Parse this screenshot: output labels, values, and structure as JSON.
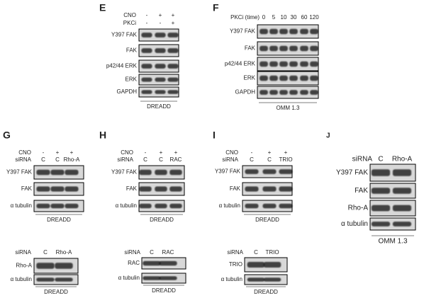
{
  "panels": [
    {
      "letter": "E",
      "header": [
        {
          "label": "CNO",
          "lanes": [
            "-",
            "+",
            "+"
          ]
        },
        {
          "label": "PKCi",
          "lanes": [
            "-",
            "-",
            "+"
          ]
        }
      ],
      "blots": [
        "Y397 FAK",
        "FAK",
        "p42/44 ERK",
        "ERK",
        "GAPDH"
      ],
      "caption": "DREADD"
    },
    {
      "letter": "F",
      "header": [
        {
          "label": "PKCi (time)",
          "lanes": [
            "0",
            "5",
            "10",
            "30",
            "60",
            "120"
          ]
        }
      ],
      "blots": [
        "Y397 FAK",
        "FAK",
        "p42/44 ERK",
        "ERK",
        "GAPDH"
      ],
      "caption": "OMM 1.3"
    },
    {
      "letter": "G",
      "header": [
        {
          "label": "CNO",
          "lanes": [
            "-",
            "+",
            "+"
          ]
        },
        {
          "label": "siRNA",
          "lanes": [
            "C",
            "C",
            "Rho-A"
          ]
        }
      ],
      "blots": [
        "Y397 FAK",
        "FAK",
        "α tubulin"
      ],
      "caption": "DREADD"
    },
    {
      "header": [
        {
          "label": "siRNA",
          "lanes": [
            "C",
            "Rho-A"
          ]
        }
      ],
      "blots": [
        "Rho-A",
        "α tubulin"
      ],
      "caption": "DREADD"
    },
    {
      "letter": "H",
      "header": [
        {
          "label": "CNO",
          "lanes": [
            "-",
            "+",
            "+"
          ]
        },
        {
          "label": "siRNA",
          "lanes": [
            "C",
            "C",
            "RAC"
          ]
        }
      ],
      "blots": [
        "Y397 FAK",
        "FAK",
        "α tubulin"
      ],
      "caption": "DREADD"
    },
    {
      "header": [
        {
          "label": "siRNA",
          "lanes": [
            "C",
            "RAC"
          ]
        }
      ],
      "blots": [
        "RAC",
        "α tubulin"
      ],
      "caption": "DREADD"
    },
    {
      "letter": "I",
      "header": [
        {
          "label": "CNO",
          "lanes": [
            "-",
            "+",
            "+"
          ]
        },
        {
          "label": "siRNA",
          "lanes": [
            "C",
            "C",
            "TRIO"
          ]
        }
      ],
      "blots": [
        "Y397 FAK",
        "FAK",
        "α tubulin"
      ],
      "caption": "DREADD"
    },
    {
      "header": [
        {
          "label": "siRNA",
          "lanes": [
            "C",
            "TRIO"
          ]
        }
      ],
      "blots": [
        "TRIO",
        "α tubulin"
      ],
      "caption": "DREADD"
    },
    {
      "letter": "J",
      "header": [
        {
          "label": "siRNA",
          "lanes": [
            "C",
            "Rho-A"
          ]
        }
      ],
      "blots": [
        "Y397 FAK",
        "FAK",
        "Rho-A",
        "α tubulin"
      ],
      "caption": "OMM 1.3"
    }
  ]
}
